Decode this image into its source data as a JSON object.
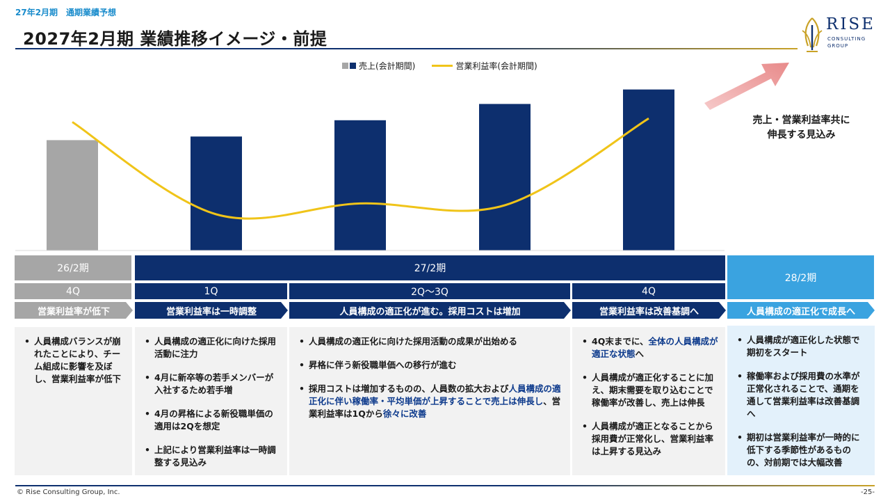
{
  "header": {
    "subtitle": "27年2月期　通期業績予想",
    "title": "2027年2月期  業績推移イメージ・前提",
    "logo": {
      "word": "RISE",
      "line1": "CONSULTING",
      "line2": "GROUP"
    }
  },
  "chart_data": {
    "type": "bar",
    "title": "",
    "categories": [
      "4Q",
      "1Q",
      "2Q",
      "3Q",
      "4Q"
    ],
    "series": [
      {
        "name": "売上(会計期間)",
        "kind": "bar",
        "values": [
          61,
          63,
          72,
          81,
          89
        ],
        "colors": [
          "#a6a6a6",
          "#0d2f6e",
          "#0d2f6e",
          "#0d2f6e",
          "#0d2f6e"
        ]
      },
      {
        "name": "営業利益率(会計期間)",
        "kind": "line",
        "values": [
          71,
          20,
          26,
          25,
          73
        ],
        "color": "#f0c419"
      }
    ],
    "ylim": [
      0,
      100
    ],
    "grid": false,
    "legend_placement": "top-center",
    "legend": [
      {
        "label": "売上(会計期間)",
        "colors": [
          "#a6a6a6",
          "#0d2f6e"
        ]
      },
      {
        "label": "営業利益率(会計期間)",
        "color": "#f0c419"
      }
    ]
  },
  "callout": {
    "line1": "売上・営業利益率共に",
    "line2": "伸長する見込み"
  },
  "periods": {
    "p26": "26/2期",
    "p27": "27/2期",
    "p28": "28/2期"
  },
  "quarters": {
    "q4_prev": "4Q",
    "q1": "1Q",
    "q2_3": "2Q～3Q",
    "q4": "4Q"
  },
  "phases": [
    "営業利益率が低下",
    "営業利益率は一時調整",
    "人員構成の適正化が進む。採用コストは増加",
    "営業利益率は改善基調へ",
    "人員構成の適正化で成長へ"
  ],
  "panels": {
    "p1": {
      "b1": "人員構成バランスが崩れたことにより、チーム組成に影響を及ぼし、営業利益率が低下"
    },
    "p2": {
      "b1": "人員構成の適正化に向けた採用活動に注力",
      "b2": "4月に新卒等の若手メンバーが入社するため若手増",
      "b3": "4月の昇格による新役職単価の適用は2Qを想定",
      "b4": "上記により営業利益率は一時調整する見込み"
    },
    "p3": {
      "b1": "人員構成の適正化に向けた採用活動の成果が出始める",
      "b2": "昇格に伴う新役職単価への移行が進む",
      "b3a": "採用コストは増加するものの、人員数の拡大および",
      "b3b": "人員構成の適正化に伴い稼働率・平均単価が上昇することで売上は伸長し",
      "b3c": "、営業利益率は1Qから",
      "b3d": "徐々に改善"
    },
    "p4": {
      "b1a": "4Q末までに、",
      "b1b": "全体の人員構成が適正な状態",
      "b1c": "へ",
      "b2": "人員構成が適正化することに加え、期末需要を取り込むことで稼働率が改善し、売上は伸長",
      "b3": "人員構成が適正となることから採用費が正常化し、営業利益率は上昇する見込み"
    },
    "p5": {
      "b1": "人員構成が適正化した状態で期初をスタート",
      "b2": "稼働率および採用費の水準が正常化されることで、通期を通して営業利益率は改善基調へ",
      "b3": "期初は営業利益率が一時的に低下する季節性があるものの、対前期では大幅改善"
    }
  },
  "footer": {
    "copyright": "© Rise Consulting Group, Inc.",
    "page": "-25-"
  }
}
